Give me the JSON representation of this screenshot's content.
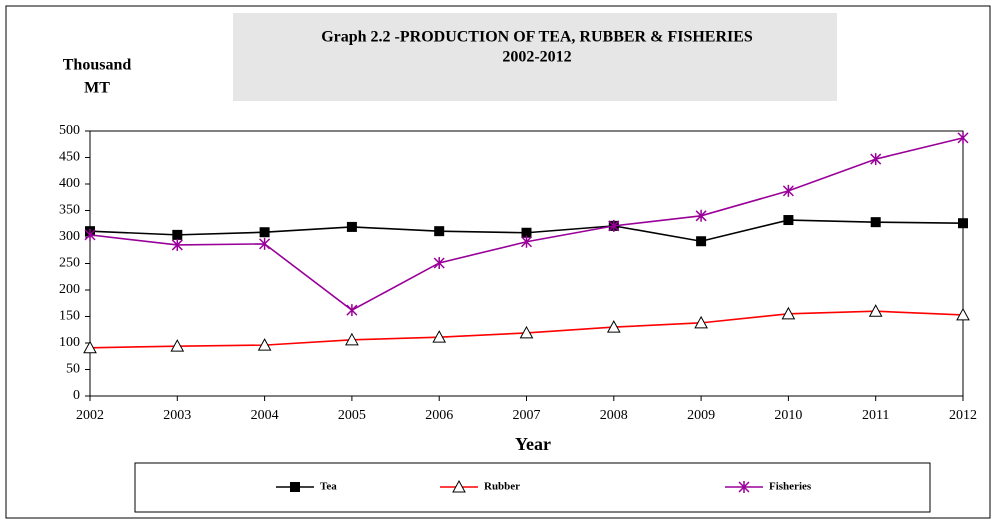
{
  "chart_data": {
    "type": "line",
    "title": "Graph 2.2 -PRODUCTION OF TEA, RUBBER & FISHERIES",
    "subtitle": "2002-2012",
    "ylabel": [
      "Thousand",
      "MT"
    ],
    "xlabel": "Year",
    "categories": [
      "2002",
      "2003",
      "2004",
      "2005",
      "2006",
      "2007",
      "2008",
      "2009",
      "2010",
      "2011",
      "2012"
    ],
    "series": [
      {
        "name": "Tea",
        "color": "#000000",
        "marker": "square",
        "values": [
          311,
          304,
          309,
          319,
          311,
          308,
          321,
          292,
          332,
          328,
          326
        ]
      },
      {
        "name": "Rubber",
        "color": "#ff0000",
        "marker": "triangle",
        "values": [
          91,
          94,
          96,
          106,
          111,
          119,
          130,
          138,
          155,
          160,
          153
        ]
      },
      {
        "name": "Fisheries",
        "color": "#990099",
        "marker": "star",
        "values": [
          304,
          285,
          287,
          162,
          251,
          291,
          321,
          340,
          387,
          447,
          487
        ]
      }
    ],
    "ylim": [
      0,
      500
    ],
    "yticks": [
      0,
      50,
      100,
      150,
      200,
      250,
      300,
      350,
      400,
      450,
      500
    ],
    "grid": false,
    "legend": "bottom"
  }
}
